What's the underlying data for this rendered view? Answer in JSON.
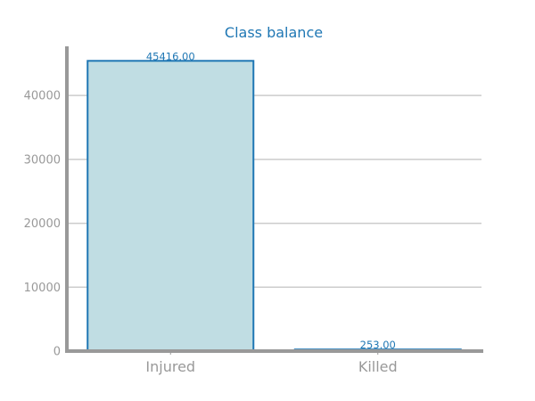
{
  "chart_data": {
    "type": "bar",
    "title": "Class balance",
    "xlabel": "",
    "ylabel": "",
    "categories": [
      "Injured",
      "Killed"
    ],
    "values": [
      45416.0,
      253.0
    ],
    "value_labels": [
      "45416.00",
      "253.00"
    ],
    "yticks": [
      0,
      10000,
      20000,
      30000,
      40000
    ],
    "ytick_labels": [
      "0",
      "10000",
      "20000",
      "30000",
      "40000"
    ],
    "ylim": [
      0,
      47688
    ],
    "grid": "horizontal",
    "legend": "none",
    "colors": {
      "bar_fill": "#c0dde3",
      "bar_edge": "#1f77b4",
      "title": "#1f77b4",
      "data_label": "#1f77b4",
      "axis": "#999999",
      "grid": "#cccccc",
      "tick_label": "#999999"
    }
  }
}
